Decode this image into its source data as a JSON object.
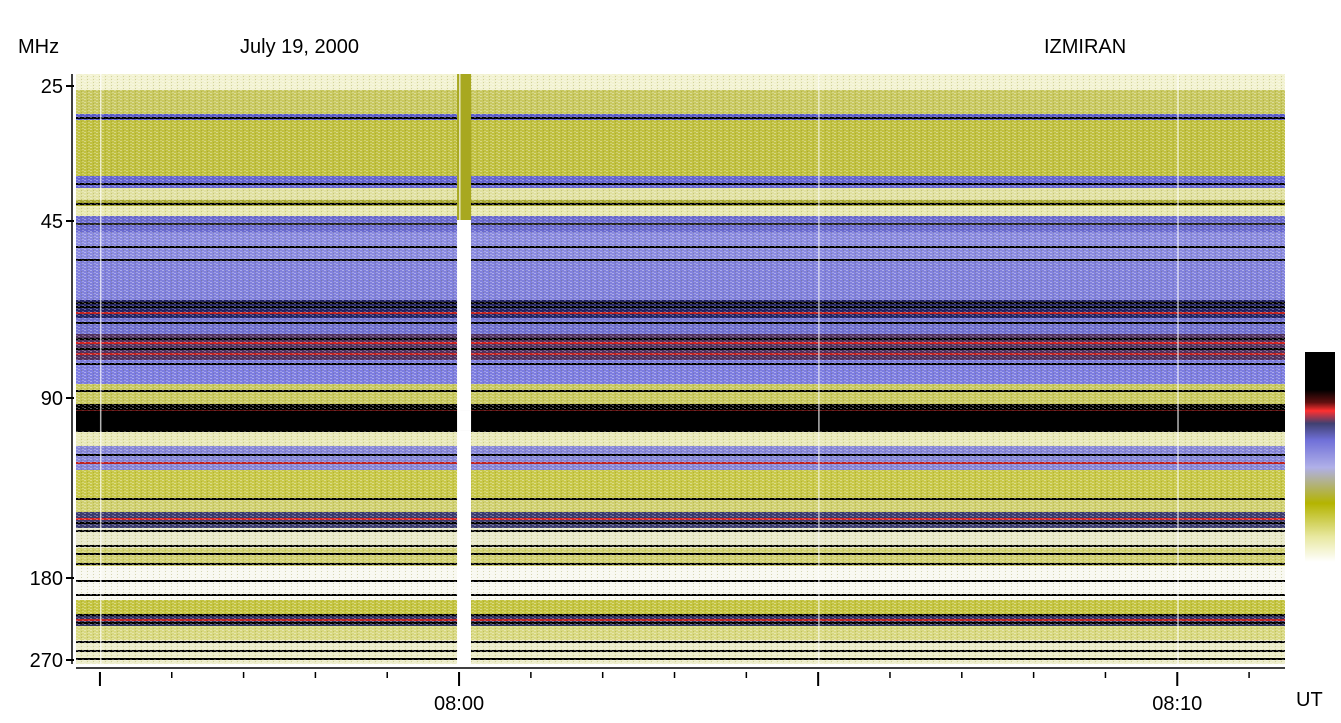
{
  "header": {
    "unit": "MHz",
    "date": "July 19, 2000",
    "observatory": "IZMIRAN"
  },
  "chart_data": {
    "type": "heatmap",
    "title": "",
    "xlabel": "UT",
    "ylabel": "MHz",
    "y_scale": "log",
    "ylim": [
      25,
      270
    ],
    "xlim": [
      "07:54:40",
      "08:11:30"
    ],
    "yticks": [
      {
        "value": 25,
        "label": "25"
      },
      {
        "value": 45,
        "label": "45"
      },
      {
        "value": 90,
        "label": "90"
      },
      {
        "value": 180,
        "label": "180"
      },
      {
        "value": 270,
        "label": "270"
      }
    ],
    "xticks_major": [
      {
        "value": "07:55",
        "label": ""
      },
      {
        "value": "08:00",
        "label": "08:00"
      },
      {
        "value": "08:05",
        "label": ""
      },
      {
        "value": "08:10",
        "label": "08:10"
      }
    ],
    "minor_tick_interval_s": 60,
    "colorbar": {
      "orientation": "vertical",
      "colors": [
        "#ffffff",
        "#e8e8a0",
        "#b4b400",
        "#8080e0",
        "#5050c0",
        "#ff3030",
        "#000000"
      ]
    },
    "features": [
      {
        "type": "data-gap",
        "time": "08:00",
        "description_visible": true
      },
      {
        "type": "strong-band",
        "freq_range": [
          93,
          103
        ]
      }
    ]
  }
}
